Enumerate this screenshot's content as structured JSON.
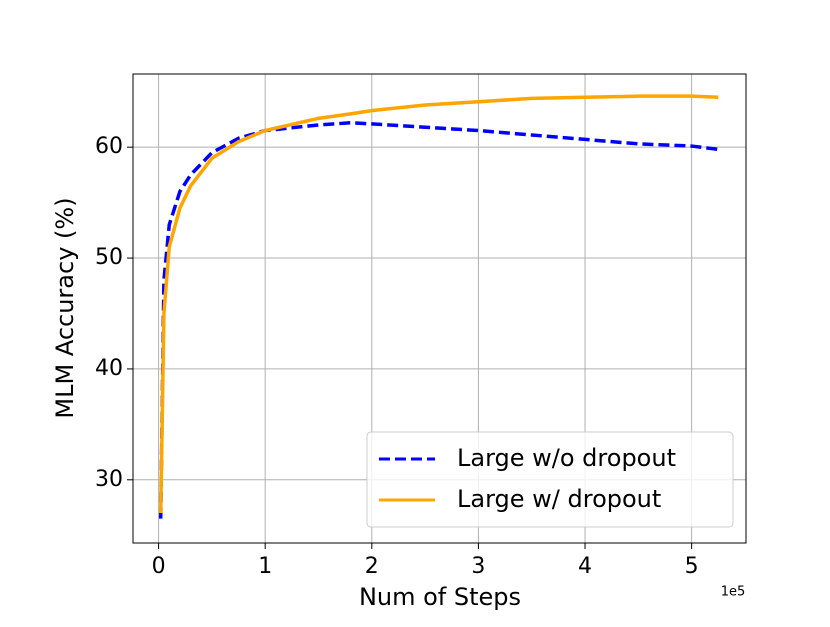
{
  "chart_data": {
    "type": "line",
    "xlabel": "Num of Steps",
    "ylabel": "MLM Accuracy (%)",
    "x_scale_label": "1e5",
    "x": [
      0.02,
      0.05,
      0.1,
      0.2,
      0.3,
      0.5,
      0.75,
      1.0,
      1.5,
      1.8,
      2.0,
      2.5,
      3.0,
      3.5,
      4.0,
      4.5,
      5.0,
      5.25
    ],
    "series": [
      {
        "name": "Large w/o dropout",
        "color": "#0000ff",
        "linestyle": "dashed",
        "values": [
          26.5,
          48,
          53,
          56,
          57.5,
          59.5,
          60.8,
          61.5,
          62,
          62.2,
          62.1,
          61.8,
          61.5,
          61.1,
          60.7,
          60.3,
          60.1,
          59.8
        ]
      },
      {
        "name": "Large w/ dropout",
        "color": "#ffa500",
        "linestyle": "solid",
        "values": [
          27,
          45,
          51,
          54.5,
          56.5,
          59,
          60.5,
          61.5,
          62.6,
          63.0,
          63.3,
          63.8,
          64.1,
          64.4,
          64.5,
          64.6,
          64.6,
          64.5
        ]
      }
    ],
    "xlim": [
      -0.24,
      5.51
    ],
    "xticks": [
      0,
      1,
      2,
      3,
      4,
      5
    ],
    "ylim": [
      24.3,
      66.6
    ],
    "yticks": [
      30,
      40,
      50,
      60
    ],
    "grid": true,
    "legend": "lower right"
  }
}
